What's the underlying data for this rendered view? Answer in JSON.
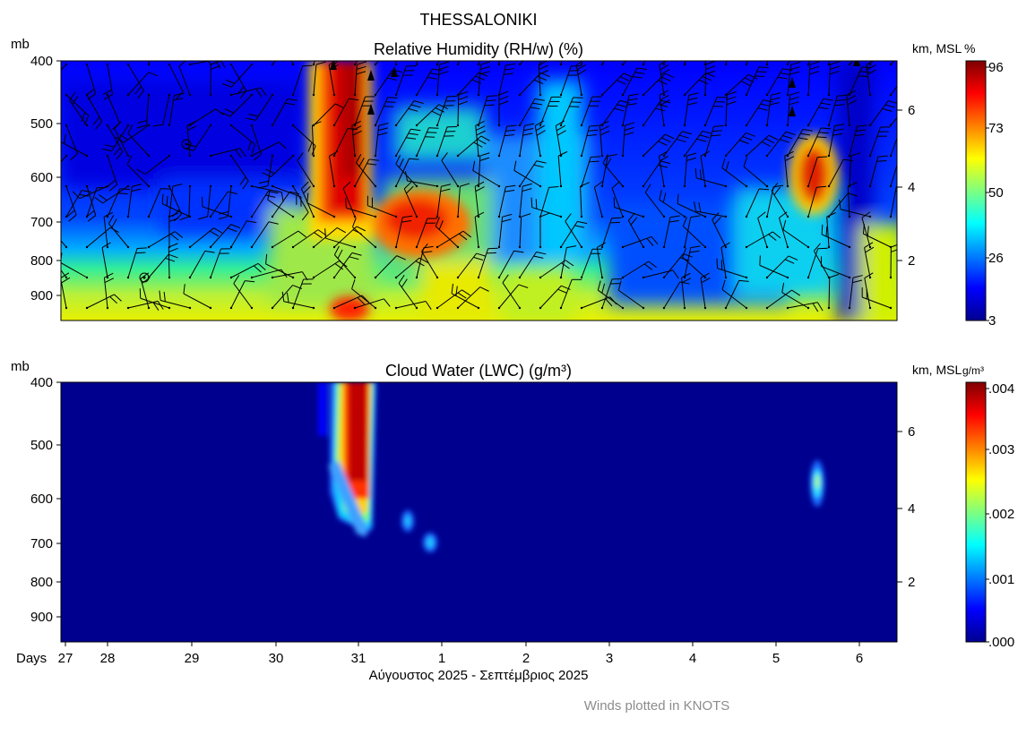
{
  "figure": {
    "title": "THESSALONIKI",
    "footer_note": "Winds plotted in KNOTS",
    "date_label": "Αύγουστος 2025 - Σεπτέμβριος 2025",
    "days_label": "Days"
  },
  "chart_data": [
    {
      "type": "heatmap",
      "title": "Relative Humidity (RH/w) (%)",
      "ylabel": "mb",
      "y2label": "km, MSL",
      "colorbar_unit": "%",
      "colorbar_ticks": [
        "96",
        "73",
        "50",
        "26",
        "3"
      ],
      "colorbar_range": [
        3,
        96
      ],
      "pressure_ticks": [
        "400",
        "500",
        "600",
        "700",
        "800",
        "900"
      ],
      "height_ticks": [
        "6",
        "4",
        "2"
      ],
      "x_ticks": [
        "27",
        "28",
        "29",
        "30",
        "31",
        "1",
        "2",
        "3",
        "4",
        "5",
        "6"
      ],
      "overlay": "wind barbs",
      "colormap": [
        "#00008f",
        "#0000ff",
        "#007fff",
        "#00ffff",
        "#7fff7f",
        "#ffff00",
        "#ff7f00",
        "#ff0000",
        "#7f0000"
      ],
      "features": [
        {
          "desc": "moist column",
          "day_range": [
            "30.6",
            "31.1"
          ],
          "pressure_range": [
            400,
            950
          ],
          "rh": 90
        },
        {
          "desc": "moist mid-level patch",
          "day_range": [
            "31.3",
            "31.9"
          ],
          "pressure_range": [
            650,
            800
          ],
          "rh": 85
        },
        {
          "desc": "moist pocket",
          "day_range": [
            "5.35",
            "5.6"
          ],
          "pressure_range": [
            550,
            650
          ],
          "rh": 85
        },
        {
          "desc": "dry upper layer",
          "day_range": [
            "27",
            "30.5"
          ],
          "pressure_range": [
            400,
            700
          ],
          "rh": 10
        },
        {
          "desc": "moderate lower layer",
          "day_range": [
            "27",
            "30.5"
          ],
          "pressure_range": [
            720,
            950
          ],
          "rh": 50
        }
      ]
    },
    {
      "type": "heatmap",
      "title": "Cloud Water (LWC) (g/m³)",
      "ylabel": "mb",
      "y2label": "km, MSL",
      "colorbar_unit": "g/m³",
      "colorbar_ticks": [
        ".004",
        ".003",
        ".002",
        ".001",
        ".000"
      ],
      "colorbar_range": [
        0,
        0.0042
      ],
      "pressure_ticks": [
        "400",
        "500",
        "600",
        "700",
        "800",
        "900"
      ],
      "height_ticks": [
        "6",
        "4",
        "2"
      ],
      "x_ticks": [
        "27",
        "28",
        "29",
        "30",
        "31",
        "1",
        "2",
        "3",
        "4",
        "5",
        "6"
      ],
      "colormap": [
        "#00008f",
        "#0000ff",
        "#007fff",
        "#00ffff",
        "#7fff7f",
        "#ffff00",
        "#ff7f00",
        "#ff0000",
        "#7f0000"
      ],
      "features": [
        {
          "desc": "cloud water column",
          "day_range": [
            "30.7",
            "31.1"
          ],
          "pressure_range": [
            400,
            650
          ],
          "lwc": 0.004
        },
        {
          "desc": "small cloud spot",
          "day": "31.5",
          "pressure": 650,
          "lwc": 0.001
        },
        {
          "desc": "small cloud spot",
          "day": "31.8",
          "pressure": 700,
          "lwc": 0.001
        },
        {
          "desc": "small cloud patch",
          "day": "5.5",
          "pressure": 560,
          "lwc": 0.0015
        }
      ]
    }
  ]
}
